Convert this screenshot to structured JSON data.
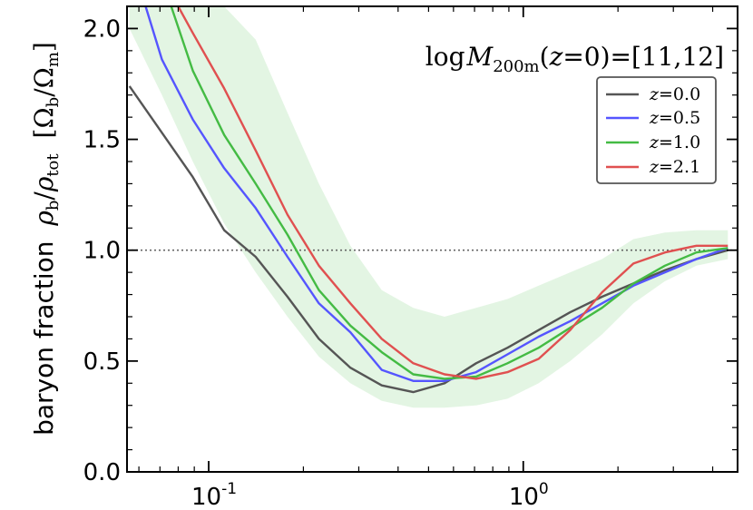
{
  "chart_data": {
    "type": "line",
    "title": "",
    "xlabel": "",
    "ylabel": {
      "text": "baryon fraction",
      "math_num": "ρ",
      "num_sub": "b",
      "math_den": "ρ",
      "den_sub": "tot",
      "unit_num": "Ω",
      "unit_num_sub": "b",
      "unit_den": "Ω",
      "unit_den_sub": "m"
    },
    "xscale": "log",
    "xlim": [
      0.055,
      4.8
    ],
    "ylim": [
      0.0,
      2.1
    ],
    "xticks": [
      {
        "value": 0.1,
        "base": "10",
        "exp": "-1"
      },
      {
        "value": 1.0,
        "base": "10",
        "exp": "0"
      }
    ],
    "yticks": [
      {
        "value": 0.0,
        "label": "0.0"
      },
      {
        "value": 0.5,
        "label": "0.5"
      },
      {
        "value": 1.0,
        "label": "1.0"
      },
      {
        "value": 1.5,
        "label": "1.5"
      },
      {
        "value": 2.0,
        "label": "2.0"
      }
    ],
    "reference_line": {
      "y": 1.0,
      "style": "dotted"
    },
    "annotation": {
      "prefix": "log",
      "var": "M",
      "sub": "200m",
      "mid": "(",
      "zvar": "z",
      "suffix": "=0)=[11,12]"
    },
    "legend_position": "upper right",
    "series": [
      {
        "name": "z=0.0",
        "zlabel": "z",
        "zvalue": "=0.0",
        "color": "#555555",
        "x": [
          0.056,
          0.089,
          0.112,
          0.141,
          0.178,
          0.224,
          0.282,
          0.355,
          0.447,
          0.562,
          0.708,
          0.891,
          1.12,
          1.41,
          1.78,
          2.24,
          2.82,
          3.55,
          4.47
        ],
        "y": [
          1.74,
          1.33,
          1.09,
          0.97,
          0.79,
          0.6,
          0.47,
          0.39,
          0.36,
          0.4,
          0.49,
          0.56,
          0.64,
          0.72,
          0.79,
          0.85,
          0.91,
          0.96,
          1.0
        ]
      },
      {
        "name": "z=0.5",
        "zlabel": "z",
        "zvalue": "=0.5",
        "color": "#5555ff",
        "x": [
          0.063,
          0.071,
          0.089,
          0.112,
          0.141,
          0.178,
          0.224,
          0.282,
          0.355,
          0.447,
          0.562,
          0.708,
          0.891,
          1.12,
          1.41,
          1.78,
          2.24,
          2.82,
          3.55,
          4.47
        ],
        "y": [
          2.1,
          1.86,
          1.59,
          1.37,
          1.19,
          0.97,
          0.76,
          0.63,
          0.46,
          0.41,
          0.41,
          0.45,
          0.53,
          0.61,
          0.68,
          0.76,
          0.84,
          0.9,
          0.96,
          1.01
        ]
      },
      {
        "name": "z=1.0",
        "zlabel": "z",
        "zvalue": "=1.0",
        "color": "#44bb44",
        "x": [
          0.076,
          0.089,
          0.112,
          0.141,
          0.178,
          0.224,
          0.282,
          0.355,
          0.447,
          0.562,
          0.708,
          0.891,
          1.12,
          1.41,
          1.78,
          2.24,
          2.82,
          3.55,
          4.47
        ],
        "y": [
          2.1,
          1.81,
          1.52,
          1.3,
          1.07,
          0.82,
          0.66,
          0.54,
          0.44,
          0.42,
          0.43,
          0.49,
          0.56,
          0.65,
          0.74,
          0.85,
          0.93,
          0.99,
          1.01
        ]
      },
      {
        "name": "z=2.1",
        "zlabel": "z",
        "zvalue": "=2.1",
        "color": "#e05050",
        "x": [
          0.08,
          0.089,
          0.112,
          0.141,
          0.178,
          0.224,
          0.282,
          0.355,
          0.447,
          0.562,
          0.708,
          0.891,
          1.12,
          1.41,
          1.78,
          2.24,
          2.82,
          3.55,
          4.47
        ],
        "y": [
          2.1,
          1.98,
          1.73,
          1.45,
          1.16,
          0.93,
          0.76,
          0.6,
          0.49,
          0.44,
          0.42,
          0.45,
          0.51,
          0.64,
          0.81,
          0.94,
          0.99,
          1.02,
          1.02
        ]
      }
    ],
    "band": {
      "color": "#44bb44",
      "x": [
        0.056,
        0.071,
        0.089,
        0.112,
        0.141,
        0.178,
        0.224,
        0.282,
        0.355,
        0.447,
        0.562,
        0.708,
        0.891,
        1.12,
        1.41,
        1.78,
        2.24,
        2.82,
        3.55,
        4.47
      ],
      "upper": [
        2.1,
        2.1,
        2.1,
        2.1,
        1.95,
        1.62,
        1.3,
        1.02,
        0.82,
        0.74,
        0.7,
        0.74,
        0.78,
        0.84,
        0.9,
        0.96,
        1.05,
        1.08,
        1.09,
        1.09
      ],
      "lower": [
        2.0,
        1.7,
        1.4,
        1.12,
        0.9,
        0.7,
        0.52,
        0.4,
        0.32,
        0.29,
        0.29,
        0.3,
        0.33,
        0.4,
        0.5,
        0.62,
        0.76,
        0.86,
        0.93,
        0.96
      ]
    }
  }
}
